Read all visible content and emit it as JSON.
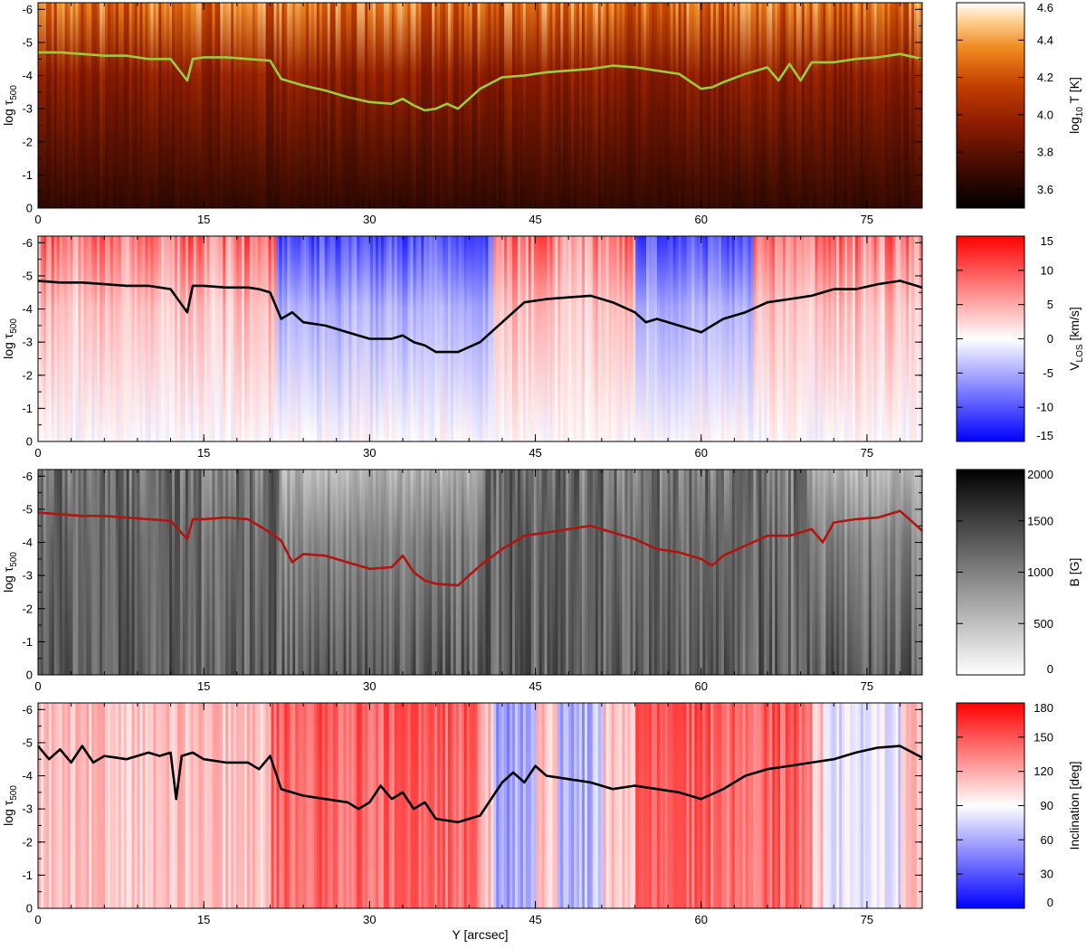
{
  "chart_data": [
    {
      "type": "heatmap",
      "quantity": "temperature",
      "ylabel_main": "log τ",
      "ylabel_sub": "500",
      "xticks": [
        "0",
        "15",
        "30",
        "45",
        "60",
        "75"
      ],
      "yticks": [
        "-6",
        "-5",
        "-4",
        "-3",
        "-2",
        "-1",
        "0"
      ],
      "xlim": [
        0,
        80
      ],
      "ylim": [
        0,
        -6.2
      ],
      "colorbar": {
        "label_main": "log",
        "label_sub": "10",
        "label_rest": " T [K]",
        "ticks": [
          "3.6",
          "3.8",
          "4.0",
          "4.2",
          "4.4",
          "4.6"
        ],
        "range": [
          3.5,
          4.6
        ],
        "colormap": "hot"
      },
      "line_color": "#9ccc3a",
      "line": {
        "x": [
          0,
          2,
          4,
          6,
          8,
          10,
          12,
          13.5,
          14,
          15,
          17,
          19,
          21,
          22,
          24,
          26,
          28,
          30,
          32,
          33,
          34,
          35,
          36,
          37,
          38,
          40,
          42,
          44,
          46,
          48,
          50,
          52,
          54,
          56,
          58,
          60,
          61,
          62,
          64,
          66,
          67,
          68,
          69,
          70,
          72,
          74,
          76,
          78,
          80
        ],
        "y": [
          -4.7,
          -4.7,
          -4.65,
          -4.6,
          -4.6,
          -4.5,
          -4.5,
          -3.85,
          -4.5,
          -4.55,
          -4.55,
          -4.5,
          -4.45,
          -3.9,
          -3.7,
          -3.55,
          -3.35,
          -3.2,
          -3.15,
          -3.3,
          -3.1,
          -2.95,
          -3.0,
          -3.15,
          -3.0,
          -3.6,
          -3.95,
          -4.0,
          -4.1,
          -4.15,
          -4.2,
          -4.3,
          -4.25,
          -4.15,
          -4.05,
          -3.6,
          -3.65,
          -3.8,
          -4.05,
          -4.25,
          -3.85,
          -4.35,
          -3.85,
          -4.4,
          -4.4,
          -4.5,
          -4.55,
          -4.65,
          -4.5
        ]
      }
    },
    {
      "type": "heatmap",
      "quantity": "line-of-sight velocity",
      "ylabel_main": "log τ",
      "ylabel_sub": "500",
      "xticks": [
        "0",
        "15",
        "30",
        "45",
        "60",
        "75"
      ],
      "yticks": [
        "-6",
        "-5",
        "-4",
        "-3",
        "-2",
        "-1",
        "0"
      ],
      "xlim": [
        0,
        80
      ],
      "ylim": [
        0,
        -6.2
      ],
      "colorbar": {
        "label_main": "V",
        "label_sub": "LOS",
        "label_rest": " [km/s]",
        "ticks": [
          "15",
          "10",
          "5",
          "0",
          "-5",
          "-10",
          "-15"
        ],
        "range": [
          -15,
          15
        ],
        "colormap": "blue-white-red"
      },
      "line_color": "#000000",
      "line": {
        "x": [
          0,
          2,
          4,
          6,
          8,
          10,
          12,
          13.5,
          14,
          15,
          17,
          19,
          20,
          21,
          22,
          23,
          24,
          26,
          28,
          30,
          32,
          33,
          34,
          35,
          36,
          38,
          40,
          42,
          44,
          46,
          48,
          50,
          52,
          54,
          55,
          56,
          58,
          60,
          61,
          62,
          64,
          66,
          68,
          70,
          72,
          74,
          76,
          78,
          80
        ],
        "y": [
          -4.85,
          -4.8,
          -4.8,
          -4.75,
          -4.7,
          -4.7,
          -4.6,
          -3.9,
          -4.7,
          -4.7,
          -4.65,
          -4.65,
          -4.6,
          -4.5,
          -3.7,
          -3.9,
          -3.6,
          -3.5,
          -3.3,
          -3.1,
          -3.1,
          -3.2,
          -3.0,
          -2.9,
          -2.7,
          -2.7,
          -3.0,
          -3.6,
          -4.2,
          -4.3,
          -4.35,
          -4.4,
          -4.2,
          -3.9,
          -3.6,
          -3.7,
          -3.5,
          -3.3,
          -3.5,
          -3.7,
          -3.9,
          -4.2,
          -4.3,
          -4.4,
          -4.6,
          -4.6,
          -4.75,
          -4.85,
          -4.65
        ]
      }
    },
    {
      "type": "heatmap",
      "quantity": "magnetic field strength",
      "ylabel_main": "log τ",
      "ylabel_sub": "500",
      "xticks": [
        "0",
        "15",
        "30",
        "45",
        "60",
        "75"
      ],
      "yticks": [
        "-6",
        "-5",
        "-4",
        "-3",
        "-2",
        "-1",
        "0"
      ],
      "xlim": [
        0,
        80
      ],
      "ylim": [
        0,
        -6.2
      ],
      "colorbar": {
        "label_main": "B [G]",
        "label_sub": "",
        "label_rest": "",
        "ticks": [
          "2000",
          "1500",
          "1000",
          "500",
          "0"
        ],
        "range": [
          0,
          2000
        ],
        "colormap": "gray-reversed"
      },
      "line_color": "#b0150f",
      "line": {
        "x": [
          0,
          2,
          4,
          6,
          8,
          10,
          12,
          13.5,
          14,
          15,
          17,
          19,
          20,
          21,
          22,
          23,
          24,
          26,
          28,
          30,
          32,
          33,
          34,
          35,
          36,
          38,
          40,
          42,
          44,
          46,
          48,
          50,
          52,
          54,
          56,
          58,
          60,
          61,
          62,
          64,
          66,
          68,
          70,
          71,
          72,
          74,
          76,
          78,
          80
        ],
        "y": [
          -4.9,
          -4.85,
          -4.8,
          -4.8,
          -4.75,
          -4.7,
          -4.65,
          -4.1,
          -4.7,
          -4.7,
          -4.75,
          -4.7,
          -4.5,
          -4.3,
          -4.05,
          -3.4,
          -3.65,
          -3.6,
          -3.4,
          -3.2,
          -3.25,
          -3.6,
          -3.1,
          -2.85,
          -2.75,
          -2.7,
          -3.3,
          -3.8,
          -4.2,
          -4.3,
          -4.4,
          -4.5,
          -4.3,
          -4.1,
          -3.8,
          -3.7,
          -3.5,
          -3.3,
          -3.6,
          -3.9,
          -4.2,
          -4.2,
          -4.4,
          -4.0,
          -4.6,
          -4.7,
          -4.75,
          -4.95,
          -4.35
        ]
      }
    },
    {
      "type": "heatmap",
      "quantity": "inclination",
      "ylabel_main": "log τ",
      "ylabel_sub": "500",
      "xlabel": "Y [arcsec]",
      "xticks": [
        "0",
        "15",
        "30",
        "45",
        "60",
        "75"
      ],
      "yticks": [
        "-6",
        "-5",
        "-4",
        "-3",
        "-2",
        "-1",
        "0"
      ],
      "xlim": [
        0,
        80
      ],
      "ylim": [
        0,
        -6.2
      ],
      "colorbar": {
        "label_main": "Inclination [deg]",
        "label_sub": "",
        "label_rest": "",
        "ticks": [
          "180",
          "150",
          "120",
          "90",
          "60",
          "30",
          "0"
        ],
        "range": [
          0,
          180
        ],
        "colormap": "blue-white-red"
      },
      "line_color": "#000000",
      "line": {
        "x": [
          0,
          1,
          2,
          3,
          4,
          5,
          6,
          8,
          10,
          11,
          12,
          12.5,
          13,
          14,
          15,
          17,
          19,
          20,
          21,
          22,
          23,
          24,
          26,
          28,
          29,
          30,
          31,
          32,
          33,
          34,
          35,
          36,
          38,
          40,
          42,
          43,
          44,
          45,
          46,
          48,
          50,
          52,
          54,
          56,
          58,
          60,
          62,
          64,
          66,
          68,
          70,
          72,
          74,
          76,
          78,
          80
        ],
        "y": [
          -4.9,
          -4.5,
          -4.8,
          -4.4,
          -4.9,
          -4.4,
          -4.6,
          -4.5,
          -4.7,
          -4.6,
          -4.7,
          -3.3,
          -4.6,
          -4.7,
          -4.5,
          -4.4,
          -4.4,
          -4.2,
          -4.6,
          -3.6,
          -3.5,
          -3.4,
          -3.3,
          -3.2,
          -3.0,
          -3.2,
          -3.7,
          -3.3,
          -3.5,
          -3.0,
          -3.2,
          -2.7,
          -2.6,
          -2.8,
          -3.8,
          -4.1,
          -3.8,
          -4.3,
          -4.0,
          -3.9,
          -3.8,
          -3.6,
          -3.7,
          -3.6,
          -3.5,
          -3.3,
          -3.6,
          -4.0,
          -4.2,
          -4.3,
          -4.4,
          -4.5,
          -4.7,
          -4.85,
          -4.9,
          -4.55
        ]
      }
    }
  ]
}
